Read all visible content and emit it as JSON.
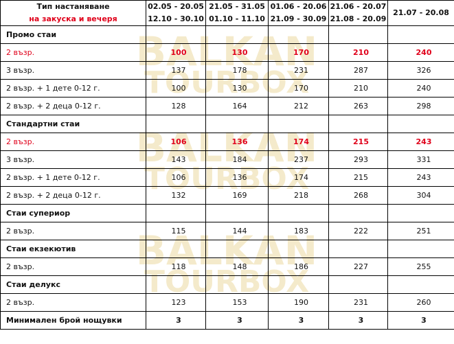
{
  "header": {
    "cap_line1": "Тип настаняване",
    "cap_line2": "на закуска и вечеря",
    "periods": [
      {
        "line1": "02.05 - 20.05",
        "line2": "12.10 - 30.10"
      },
      {
        "line1": "21.05 - 31.05",
        "line2": "01.10 - 11.10"
      },
      {
        "line1": "01.06 - 20.06",
        "line2": "21.09 - 30.09"
      },
      {
        "line1": "21.06 - 20.07",
        "line2": "21.08 - 20.09"
      },
      {
        "line1": "21.07 - 20.08",
        "line2": ""
      }
    ]
  },
  "sections": [
    {
      "title": "Промо стаи",
      "rows": [
        {
          "label": "2 възр.",
          "values": [
            "100",
            "130",
            "170",
            "210",
            "240"
          ],
          "highlight": true
        },
        {
          "label": "3 възр.",
          "values": [
            "137",
            "178",
            "231",
            "287",
            "326"
          ]
        },
        {
          "label": "2 възр. + 1 дете 0-12 г.",
          "values": [
            "100",
            "130",
            "170",
            "210",
            "240"
          ]
        },
        {
          "label": "2 възр. + 2 деца 0-12 г.",
          "values": [
            "128",
            "164",
            "212",
            "263",
            "298"
          ]
        }
      ]
    },
    {
      "title": "Стандартни стаи",
      "rows": [
        {
          "label": "2 възр.",
          "values": [
            "106",
            "136",
            "174",
            "215",
            "243"
          ],
          "highlight": true
        },
        {
          "label": "3 възр.",
          "values": [
            "143",
            "184",
            "237",
            "293",
            "331"
          ]
        },
        {
          "label": "2 възр. + 1 дете 0-12 г.",
          "values": [
            "106",
            "136",
            "174",
            "215",
            "243"
          ]
        },
        {
          "label": "2 възр. + 2 деца 0-12 г.",
          "values": [
            "132",
            "169",
            "218",
            "268",
            "304"
          ]
        }
      ]
    },
    {
      "title": "Стаи супериор",
      "rows": [
        {
          "label": "2 възр.",
          "values": [
            "115",
            "144",
            "183",
            "222",
            "251"
          ]
        }
      ]
    },
    {
      "title": "Стаи екзекютив",
      "rows": [
        {
          "label": "2 възр.",
          "values": [
            "118",
            "148",
            "186",
            "227",
            "255"
          ]
        }
      ]
    },
    {
      "title": "Стаи делукс",
      "rows": [
        {
          "label": "2 възр.",
          "values": [
            "123",
            "153",
            "190",
            "231",
            "260"
          ]
        }
      ]
    }
  ],
  "footer": {
    "label": "Минимален брой нощувки",
    "values": [
      "3",
      "3",
      "3",
      "3",
      "3"
    ]
  },
  "watermark": {
    "line1": "BALKAN",
    "line2": "TOURBOX",
    "color": "#f3e7c2"
  },
  "colors": {
    "accent_red": "#e0001a",
    "border": "#000000"
  }
}
